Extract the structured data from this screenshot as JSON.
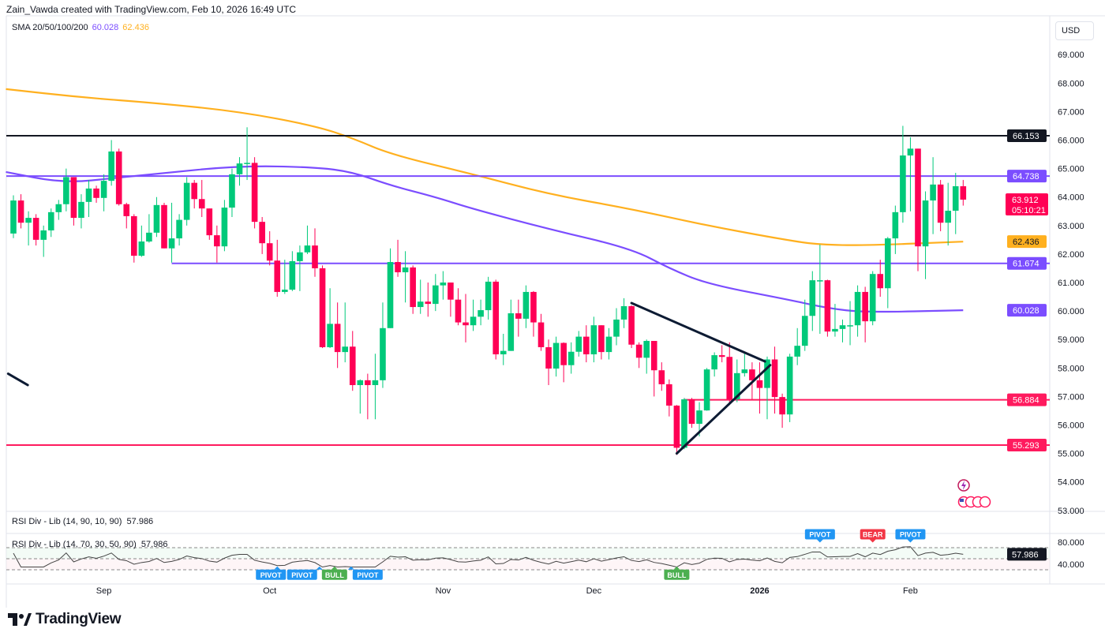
{
  "header": {
    "credit": "Zain_Vawda created with TradingView.com, Feb 10, 2026 16:49 UTC",
    "currency_button": "USD"
  },
  "legend": {
    "indicator": "SMA 20/50/100/200",
    "sma100_value": "60.028",
    "sma200_value": "62.436"
  },
  "panes": {
    "rsi_div_1_title": "RSI Div - Lib (14, 90, 10, 90)",
    "rsi_div_1_value": "57.986",
    "rsi_div_2_title": "RSI Div - Lib (14, 70, 30, 50, 90)",
    "rsi_div_2_value": "57.986"
  },
  "price_tag": {
    "last": "63.912",
    "countdown": "05:10:21"
  },
  "logo": {
    "text": "TradingView"
  },
  "colors": {
    "up": "#00c97a",
    "down": "#ff0055",
    "sma100": "#7b4dff",
    "sma200": "#ffb01f",
    "level_black": "#131722",
    "level_red": "#ff1a5e",
    "trendline": "#0d1b33",
    "pivot": "#2196f3",
    "bull": "#4caf50",
    "bear": "#f23645"
  },
  "chart_data": {
    "type": "candlestick",
    "title": "",
    "ylim": [
      52.8,
      69.9
    ],
    "price_ticks": [
      "53.000",
      "54.000",
      "55.000",
      "56.000",
      "57.000",
      "58.000",
      "59.000",
      "60.000",
      "61.000",
      "62.000",
      "63.000",
      "64.000",
      "65.000",
      "66.000",
      "67.000",
      "68.000",
      "69.000"
    ],
    "x_ticks": [
      {
        "label": "Sep",
        "index": 13,
        "bold": false
      },
      {
        "label": "Oct",
        "index": 35,
        "bold": false
      },
      {
        "label": "Nov",
        "index": 58,
        "bold": false
      },
      {
        "label": "Dec",
        "index": 78,
        "bold": false
      },
      {
        "label": "2026",
        "index": 100,
        "bold": true
      },
      {
        "label": "Feb",
        "index": 120,
        "bold": false
      }
    ],
    "ohlc": [
      [
        62.72,
        64.06,
        62.56,
        63.88
      ],
      [
        63.88,
        64.1,
        62.9,
        63.1
      ],
      [
        63.1,
        63.5,
        62.3,
        63.27
      ],
      [
        63.27,
        63.4,
        62.3,
        62.5
      ],
      [
        62.5,
        63.0,
        61.9,
        62.83
      ],
      [
        62.83,
        63.6,
        62.6,
        63.47
      ],
      [
        63.47,
        63.9,
        63.2,
        63.75
      ],
      [
        63.75,
        65.0,
        63.5,
        64.7
      ],
      [
        64.7,
        64.7,
        63.0,
        63.27
      ],
      [
        63.27,
        64.1,
        62.9,
        63.83
      ],
      [
        63.83,
        64.6,
        63.3,
        64.3
      ],
      [
        64.3,
        64.4,
        63.8,
        63.97
      ],
      [
        63.97,
        64.8,
        63.5,
        64.57
      ],
      [
        64.57,
        66.0,
        64.4,
        65.6
      ],
      [
        65.6,
        65.7,
        63.7,
        63.75
      ],
      [
        63.75,
        63.8,
        62.9,
        63.33
      ],
      [
        63.33,
        63.4,
        61.7,
        61.94
      ],
      [
        61.94,
        63.0,
        61.9,
        62.44
      ],
      [
        62.44,
        63.4,
        62.4,
        62.75
      ],
      [
        62.75,
        64.0,
        62.6,
        63.72
      ],
      [
        63.72,
        63.8,
        62.2,
        62.2
      ],
      [
        62.2,
        63.8,
        61.7,
        62.55
      ],
      [
        62.55,
        63.4,
        62.3,
        63.2
      ],
      [
        63.2,
        64.7,
        63.0,
        64.5
      ],
      [
        64.5,
        64.6,
        63.6,
        63.93
      ],
      [
        63.93,
        64.6,
        63.3,
        63.6
      ],
      [
        63.6,
        63.6,
        62.5,
        62.66
      ],
      [
        62.66,
        63.0,
        61.7,
        62.27
      ],
      [
        62.27,
        63.9,
        62.1,
        63.63
      ],
      [
        63.63,
        65.0,
        63.3,
        64.8
      ],
      [
        64.8,
        65.4,
        64.4,
        65.18
      ],
      [
        65.18,
        66.45,
        64.6,
        65.2
      ],
      [
        65.2,
        65.4,
        62.9,
        63.13
      ],
      [
        63.13,
        63.3,
        62.0,
        62.38
      ],
      [
        62.38,
        62.8,
        61.6,
        61.77
      ],
      [
        61.77,
        62.5,
        60.5,
        60.67
      ],
      [
        60.67,
        61.8,
        60.6,
        60.75
      ],
      [
        60.75,
        62.1,
        60.7,
        61.75
      ],
      [
        61.75,
        62.3,
        60.7,
        62.06
      ],
      [
        62.06,
        63.0,
        62.0,
        62.3
      ],
      [
        62.3,
        62.9,
        61.2,
        61.5
      ],
      [
        61.5,
        61.6,
        58.7,
        58.73
      ],
      [
        58.73,
        60.8,
        58.7,
        59.55
      ],
      [
        59.55,
        60.3,
        58.0,
        58.56
      ],
      [
        58.56,
        60.3,
        58.2,
        58.75
      ],
      [
        58.75,
        59.3,
        57.2,
        57.4
      ],
      [
        57.4,
        57.6,
        56.4,
        57.57
      ],
      [
        57.57,
        57.8,
        56.2,
        57.4
      ],
      [
        57.4,
        58.5,
        56.2,
        57.57
      ],
      [
        57.57,
        60.3,
        57.3,
        59.4
      ],
      [
        59.4,
        62.2,
        59.4,
        61.72
      ],
      [
        61.72,
        62.5,
        61.2,
        61.36
      ],
      [
        61.36,
        62.1,
        60.3,
        61.53
      ],
      [
        61.53,
        61.6,
        59.9,
        60.14
      ],
      [
        60.14,
        61.1,
        59.9,
        60.33
      ],
      [
        60.33,
        61.0,
        59.8,
        60.25
      ],
      [
        60.25,
        61.3,
        60.0,
        60.9
      ],
      [
        60.9,
        61.4,
        60.4,
        61.0
      ],
      [
        61.0,
        61.0,
        59.8,
        60.4
      ],
      [
        60.4,
        60.8,
        59.5,
        59.6
      ],
      [
        59.6,
        60.6,
        58.9,
        59.5
      ],
      [
        59.5,
        60.4,
        59.3,
        59.8
      ],
      [
        59.8,
        60.4,
        59.5,
        60.03
      ],
      [
        60.03,
        61.2,
        59.7,
        61.03
      ],
      [
        61.03,
        61.1,
        58.3,
        58.48
      ],
      [
        58.48,
        59.2,
        58.1,
        58.6
      ],
      [
        58.6,
        60.4,
        58.6,
        59.92
      ],
      [
        59.92,
        60.4,
        59.1,
        59.73
      ],
      [
        59.73,
        60.9,
        59.4,
        60.67
      ],
      [
        60.67,
        60.7,
        59.1,
        59.6
      ],
      [
        59.6,
        59.9,
        58.6,
        58.73
      ],
      [
        58.73,
        59.0,
        57.4,
        57.98
      ],
      [
        57.98,
        59.1,
        57.7,
        58.88
      ],
      [
        58.88,
        58.9,
        57.5,
        58.1
      ],
      [
        58.1,
        58.9,
        57.8,
        58.57
      ],
      [
        58.57,
        59.3,
        58.4,
        59.1
      ],
      [
        59.1,
        59.5,
        58.2,
        58.48
      ],
      [
        58.48,
        59.8,
        58.2,
        59.5
      ],
      [
        59.5,
        59.5,
        58.3,
        58.56
      ],
      [
        58.56,
        59.4,
        58.3,
        59.1
      ],
      [
        59.1,
        60.1,
        58.8,
        59.7
      ],
      [
        59.7,
        60.45,
        59.4,
        60.17
      ],
      [
        60.17,
        60.2,
        58.7,
        58.82
      ],
      [
        58.82,
        58.9,
        58.0,
        58.36
      ],
      [
        58.36,
        59.0,
        57.8,
        58.95
      ],
      [
        58.95,
        58.95,
        57.0,
        57.92
      ],
      [
        57.92,
        58.2,
        57.2,
        57.43
      ],
      [
        57.43,
        57.6,
        56.3,
        56.68
      ],
      [
        56.68,
        56.7,
        54.95,
        55.2
      ],
      [
        55.2,
        56.95,
        55.15,
        56.9
      ],
      [
        56.9,
        56.95,
        55.9,
        56.04
      ],
      [
        56.04,
        56.8,
        55.6,
        56.51
      ],
      [
        56.51,
        58.0,
        56.5,
        57.95
      ],
      [
        57.95,
        58.55,
        57.7,
        58.45
      ],
      [
        58.45,
        58.8,
        58.2,
        58.39
      ],
      [
        58.39,
        58.9,
        56.7,
        56.9
      ],
      [
        56.9,
        58.3,
        56.8,
        57.82
      ],
      [
        57.82,
        58.5,
        57.7,
        57.95
      ],
      [
        57.95,
        58.2,
        56.9,
        57.57
      ],
      [
        57.57,
        58.2,
        56.4,
        57.3
      ],
      [
        57.3,
        58.4,
        56.2,
        58.3
      ],
      [
        58.3,
        58.75,
        56.4,
        56.98
      ],
      [
        56.98,
        57.1,
        55.9,
        56.37
      ],
      [
        56.37,
        58.5,
        56.1,
        58.4
      ],
      [
        58.4,
        59.4,
        58.1,
        58.78
      ],
      [
        58.78,
        60.4,
        58.6,
        59.83
      ],
      [
        59.83,
        61.4,
        59.3,
        61.08
      ],
      [
        61.08,
        62.33,
        59.2,
        61.08
      ],
      [
        61.08,
        61.1,
        59.1,
        59.28
      ],
      [
        59.28,
        60.25,
        59.1,
        59.37
      ],
      [
        59.37,
        59.7,
        58.9,
        59.5
      ],
      [
        59.5,
        60.35,
        58.8,
        59.5
      ],
      [
        59.5,
        60.9,
        59.1,
        60.67
      ],
      [
        60.67,
        60.85,
        58.9,
        59.64
      ],
      [
        59.64,
        61.4,
        59.5,
        61.3
      ],
      [
        61.3,
        61.8,
        60.5,
        60.8
      ],
      [
        60.8,
        62.6,
        60.1,
        62.55
      ],
      [
        62.55,
        63.7,
        62.0,
        63.47
      ],
      [
        63.47,
        66.5,
        63.1,
        65.46
      ],
      [
        65.46,
        66.1,
        63.5,
        65.7
      ],
      [
        65.7,
        65.7,
        61.4,
        62.27
      ],
      [
        62.27,
        64.2,
        61.12,
        63.88
      ],
      [
        63.88,
        65.4,
        62.7,
        64.44
      ],
      [
        64.44,
        64.6,
        62.8,
        63.1
      ],
      [
        63.1,
        64.5,
        62.3,
        63.52
      ],
      [
        63.52,
        64.85,
        62.7,
        64.38
      ],
      [
        64.38,
        64.6,
        63.7,
        63.91
      ]
    ],
    "sma_series": [
      {
        "name": "SMA 200",
        "color": "#ffb01f",
        "points": [
          [
            0,
            67.79
          ],
          [
            10,
            67.5
          ],
          [
            20,
            67.3
          ],
          [
            31,
            67.0
          ],
          [
            41,
            66.5
          ],
          [
            46,
            66.07
          ],
          [
            51,
            65.5
          ],
          [
            62,
            64.8
          ],
          [
            72,
            64.1
          ],
          [
            83,
            63.58
          ],
          [
            93,
            63.0
          ],
          [
            104,
            62.47
          ],
          [
            108,
            62.33
          ],
          [
            114,
            62.3
          ],
          [
            127,
            62.436
          ]
        ]
      },
      {
        "name": "SMA 100",
        "color": "#7b4dff",
        "points": [
          [
            0,
            64.88
          ],
          [
            7.6,
            64.49
          ],
          [
            15,
            64.68
          ],
          [
            20,
            64.82
          ],
          [
            31,
            65.1
          ],
          [
            41,
            65.05
          ],
          [
            46,
            64.88
          ],
          [
            51,
            64.41
          ],
          [
            57,
            64.0
          ],
          [
            62,
            63.58
          ],
          [
            72,
            62.88
          ],
          [
            83,
            62.19
          ],
          [
            88,
            61.5
          ],
          [
            93,
            60.95
          ],
          [
            104,
            60.39
          ],
          [
            109,
            60.1
          ],
          [
            114,
            59.95
          ],
          [
            127,
            60.028
          ]
        ]
      }
    ],
    "levels": [
      {
        "price": 66.153,
        "label": "66.153",
        "color": "#131722",
        "from_index": 0
      },
      {
        "price": 64.738,
        "label": "64.738",
        "color": "#7b4dff",
        "from_index": 0
      },
      {
        "price": 61.674,
        "label": "61.674",
        "color": "#7b4dff",
        "from_index": 22
      },
      {
        "price": 56.884,
        "label": "56.884",
        "color": "#ff1a5e",
        "from_index": 90
      },
      {
        "price": 55.293,
        "label": "55.293",
        "color": "#ff1a5e",
        "from_index": 0
      }
    ],
    "axis_labels": [
      {
        "price": 62.436,
        "label": "62.436",
        "color": "#ffb01f",
        "text_color": "#131722"
      },
      {
        "price": 60.028,
        "label": "60.028",
        "color": "#7b4dff",
        "text_color": "#ffffff"
      }
    ],
    "trendlines": [
      {
        "from": [
          83,
          60.28
        ],
        "to": [
          100.7,
          58.23
        ]
      },
      {
        "from": [
          89,
          55.0
        ],
        "to": [
          101.4,
          58.1
        ]
      },
      {
        "from": [
          0.3,
          57.8
        ],
        "to": [
          2.9,
          57.4
        ]
      }
    ],
    "rsi": {
      "period": 14,
      "ylim": [
        20,
        90
      ],
      "axis_ticks": [
        "80.000",
        "40.000"
      ],
      "bands": [
        70,
        50,
        30
      ],
      "last_value": "57.986",
      "signals": [
        {
          "label": "PIVOT",
          "index": 36,
          "type": "pivot",
          "position": "below"
        },
        {
          "label": "PIVOT",
          "index": 41.6,
          "type": "pivot",
          "position": "below"
        },
        {
          "label": "BULL",
          "index": 43.6,
          "type": "bull",
          "position": "below"
        },
        {
          "label": "PIVOT",
          "index": 45.8,
          "type": "pivot",
          "position": "below"
        },
        {
          "label": "BULL",
          "index": 89,
          "type": "bull",
          "position": "below"
        },
        {
          "label": "PIVOT",
          "index": 108,
          "type": "pivot",
          "position": "above"
        },
        {
          "label": "BEAR",
          "index": 115,
          "type": "bear",
          "position": "above"
        },
        {
          "label": "PIVOT",
          "index": 120,
          "type": "pivot",
          "position": "above"
        }
      ]
    }
  }
}
